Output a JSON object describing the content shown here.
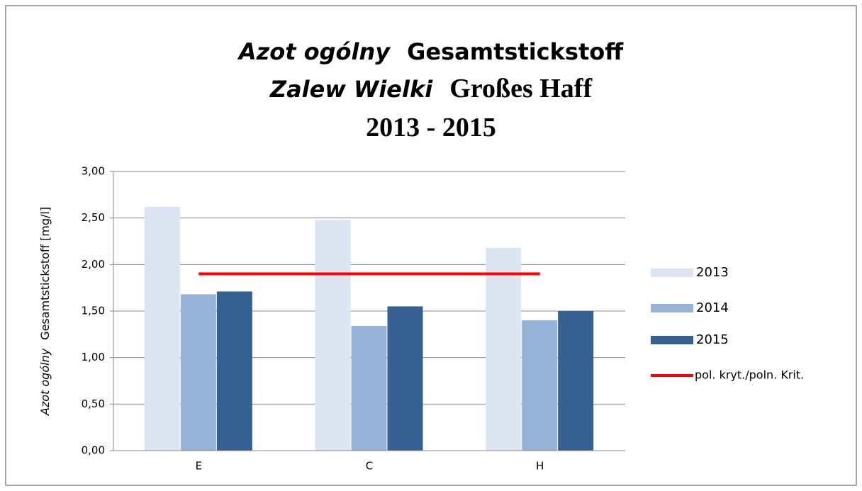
{
  "chart_data": {
    "type": "bar",
    "title": [
      [
        "Azot ogólny",
        "Gesamtstickstoff"
      ],
      [
        "Zalew Wielki",
        "Großes Haff"
      ],
      [
        "2013 - 2015"
      ]
    ],
    "y_axis_label": [
      "Azot ogólny",
      "Gesamtstickstoff [mg/l]"
    ],
    "categories": [
      "E",
      "C",
      "H"
    ],
    "series": [
      {
        "name": "2013",
        "color": "#dce6f2",
        "values": [
          2.62,
          2.48,
          2.18
        ]
      },
      {
        "name": "2014",
        "color": "#95b3d7",
        "values": [
          1.68,
          1.34,
          1.4
        ]
      },
      {
        "name": "2015",
        "color": "#376092",
        "values": [
          1.71,
          1.55,
          1.5
        ]
      },
      {
        "name": "pol. kryt./poln. Krit.",
        "color": "#ff0000",
        "type": "line",
        "values": [
          1.9,
          1.9,
          1.9
        ]
      }
    ],
    "ylim": [
      0,
      3
    ],
    "yticks": [
      {
        "value": 0,
        "label": "0,00"
      },
      {
        "value": 0.5,
        "label": "0,50"
      },
      {
        "value": 1,
        "label": "1,00"
      },
      {
        "value": 1.5,
        "label": "1,50"
      },
      {
        "value": 2,
        "label": "2,00"
      },
      {
        "value": 2.5,
        "label": "2,50"
      },
      {
        "value": 3,
        "label": "3,00"
      }
    ],
    "grid": true,
    "legend": "right"
  }
}
